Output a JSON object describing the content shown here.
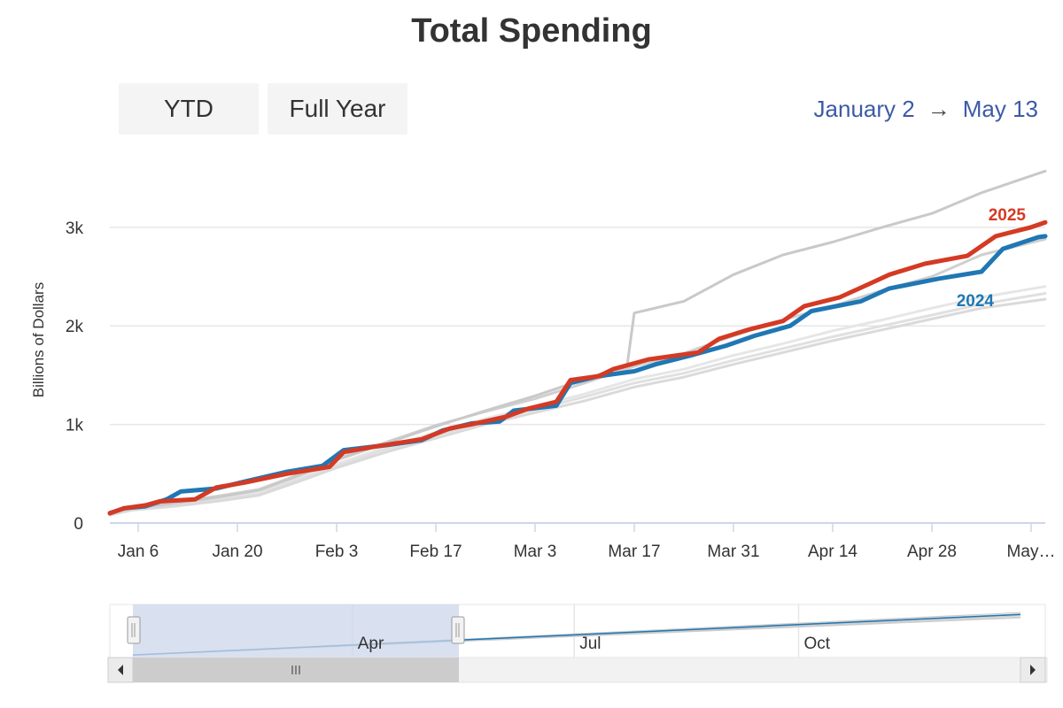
{
  "title": "Total Spending",
  "buttons": {
    "ytd": "YTD",
    "full_year": "Full Year"
  },
  "date_range": {
    "start": "January 2",
    "arrow": "→",
    "end": "May 13"
  },
  "colors": {
    "series_2025": "#d43a24",
    "series_2024": "#1f77b4",
    "past_years": "#cccccc",
    "date_range_text": "#3d5aa6",
    "navigator_mask": "#ccd6eb"
  },
  "chart_data": {
    "type": "line",
    "title": "Total Spending",
    "ylabel": "Billions of Dollars",
    "xlabel": "",
    "x_unit": "days since January 1",
    "xlim": [
      1,
      133
    ],
    "ylim": [
      0,
      3600
    ],
    "y_ticks": [
      {
        "value": 0,
        "label": "0"
      },
      {
        "value": 1000,
        "label": "1k"
      },
      {
        "value": 2000,
        "label": "2k"
      },
      {
        "value": 3000,
        "label": "3k"
      }
    ],
    "x_ticks": [
      {
        "value": 5,
        "label": "Jan 6"
      },
      {
        "value": 19,
        "label": "Jan 20"
      },
      {
        "value": 33,
        "label": "Feb 3"
      },
      {
        "value": 47,
        "label": "Feb 17"
      },
      {
        "value": 61,
        "label": "Mar 3"
      },
      {
        "value": 75,
        "label": "Mar 17"
      },
      {
        "value": 89,
        "label": "Mar 31"
      },
      {
        "value": 103,
        "label": "Apr 14"
      },
      {
        "value": 117,
        "label": "Apr 28"
      },
      {
        "value": 131,
        "label": "May…"
      }
    ],
    "grid": true,
    "legend": "inline labels at line ends",
    "series": [
      {
        "values": [
          [
            1,
            100
          ],
          [
            4,
            150
          ],
          [
            10,
            190
          ],
          [
            16,
            240
          ],
          [
            22,
            300
          ],
          [
            28,
            470
          ],
          [
            33,
            600
          ],
          [
            40,
            770
          ],
          [
            47,
            920
          ],
          [
            54,
            1060
          ],
          [
            61,
            1180
          ],
          [
            68,
            1310
          ],
          [
            75,
            1460
          ],
          [
            82,
            1560
          ],
          [
            89,
            1700
          ],
          [
            96,
            1820
          ],
          [
            103,
            1950
          ],
          [
            110,
            2060
          ],
          [
            117,
            2180
          ],
          [
            124,
            2290
          ],
          [
            133,
            2400
          ]
        ]
      },
      {
        "values": [
          [
            1,
            90
          ],
          [
            4,
            140
          ],
          [
            10,
            180
          ],
          [
            16,
            230
          ],
          [
            22,
            290
          ],
          [
            28,
            450
          ],
          [
            33,
            580
          ],
          [
            40,
            750
          ],
          [
            47,
            890
          ],
          [
            54,
            1030
          ],
          [
            61,
            1150
          ],
          [
            68,
            1280
          ],
          [
            75,
            1420
          ],
          [
            82,
            1520
          ],
          [
            89,
            1650
          ],
          [
            96,
            1770
          ],
          [
            103,
            1890
          ],
          [
            110,
            2000
          ],
          [
            117,
            2110
          ],
          [
            124,
            2220
          ],
          [
            133,
            2330
          ]
        ]
      },
      {
        "values": [
          [
            1,
            80
          ],
          [
            4,
            130
          ],
          [
            10,
            170
          ],
          [
            16,
            220
          ],
          [
            22,
            280
          ],
          [
            28,
            430
          ],
          [
            33,
            560
          ],
          [
            40,
            720
          ],
          [
            47,
            860
          ],
          [
            54,
            1000
          ],
          [
            61,
            1120
          ],
          [
            68,
            1240
          ],
          [
            75,
            1380
          ],
          [
            82,
            1480
          ],
          [
            89,
            1610
          ],
          [
            96,
            1730
          ],
          [
            103,
            1850
          ],
          [
            110,
            1960
          ],
          [
            117,
            2070
          ],
          [
            124,
            2180
          ],
          [
            133,
            2270
          ]
        ]
      },
      {
        "values": [
          [
            1,
            110
          ],
          [
            4,
            160
          ],
          [
            10,
            210
          ],
          [
            16,
            270
          ],
          [
            22,
            340
          ],
          [
            28,
            500
          ],
          [
            33,
            650
          ],
          [
            40,
            820
          ],
          [
            47,
            990
          ],
          [
            54,
            1130
          ],
          [
            61,
            1260
          ],
          [
            68,
            1420
          ],
          [
            75,
            1590
          ],
          [
            82,
            1720
          ],
          [
            89,
            1900
          ],
          [
            96,
            2060
          ],
          [
            103,
            2200
          ],
          [
            110,
            2360
          ],
          [
            117,
            2500
          ],
          [
            124,
            2720
          ],
          [
            133,
            2880
          ]
        ]
      },
      {
        "values": [
          [
            1,
            100
          ],
          [
            4,
            150
          ],
          [
            10,
            200
          ],
          [
            16,
            260
          ],
          [
            22,
            330
          ],
          [
            28,
            490
          ],
          [
            33,
            640
          ],
          [
            40,
            810
          ],
          [
            47,
            980
          ],
          [
            54,
            1140
          ],
          [
            61,
            1290
          ],
          [
            68,
            1460
          ],
          [
            74,
            1600
          ],
          [
            75,
            2130
          ],
          [
            82,
            2250
          ],
          [
            89,
            2520
          ],
          [
            96,
            2720
          ],
          [
            103,
            2850
          ],
          [
            110,
            3000
          ],
          [
            117,
            3140
          ],
          [
            124,
            3350
          ],
          [
            133,
            3570
          ]
        ]
      },
      {
        "name": "2024",
        "values": [
          [
            1,
            100
          ],
          [
            3,
            150
          ],
          [
            6,
            170
          ],
          [
            9,
            240
          ],
          [
            11,
            320
          ],
          [
            16,
            350
          ],
          [
            20,
            420
          ],
          [
            26,
            520
          ],
          [
            31,
            580
          ],
          [
            34,
            740
          ],
          [
            40,
            790
          ],
          [
            45,
            840
          ],
          [
            48,
            940
          ],
          [
            52,
            1010
          ],
          [
            56,
            1030
          ],
          [
            58,
            1140
          ],
          [
            64,
            1190
          ],
          [
            66,
            1420
          ],
          [
            70,
            1490
          ],
          [
            75,
            1540
          ],
          [
            78,
            1610
          ],
          [
            83,
            1700
          ],
          [
            88,
            1800
          ],
          [
            92,
            1900
          ],
          [
            97,
            2000
          ],
          [
            100,
            2150
          ],
          [
            107,
            2250
          ],
          [
            111,
            2380
          ],
          [
            118,
            2480
          ],
          [
            124,
            2550
          ],
          [
            127,
            2780
          ],
          [
            132,
            2900
          ],
          [
            133,
            2910
          ]
        ]
      },
      {
        "name": "2025",
        "values": [
          [
            1,
            100
          ],
          [
            3,
            150
          ],
          [
            6,
            180
          ],
          [
            8,
            220
          ],
          [
            13,
            240
          ],
          [
            16,
            360
          ],
          [
            20,
            410
          ],
          [
            26,
            500
          ],
          [
            32,
            570
          ],
          [
            34,
            720
          ],
          [
            38,
            770
          ],
          [
            45,
            850
          ],
          [
            49,
            960
          ],
          [
            52,
            1000
          ],
          [
            57,
            1080
          ],
          [
            60,
            1160
          ],
          [
            64,
            1230
          ],
          [
            66,
            1450
          ],
          [
            70,
            1490
          ],
          [
            72,
            1560
          ],
          [
            77,
            1660
          ],
          [
            84,
            1730
          ],
          [
            87,
            1870
          ],
          [
            91,
            1960
          ],
          [
            96,
            2050
          ],
          [
            99,
            2200
          ],
          [
            104,
            2290
          ],
          [
            108,
            2420
          ],
          [
            111,
            2520
          ],
          [
            116,
            2630
          ],
          [
            122,
            2710
          ],
          [
            126,
            2910
          ],
          [
            131,
            3000
          ],
          [
            133,
            3050
          ]
        ]
      }
    ],
    "navigator": {
      "x_labels": [
        "Apr",
        "Jul",
        "Oct"
      ],
      "selection": "January 2 → May 13"
    }
  }
}
